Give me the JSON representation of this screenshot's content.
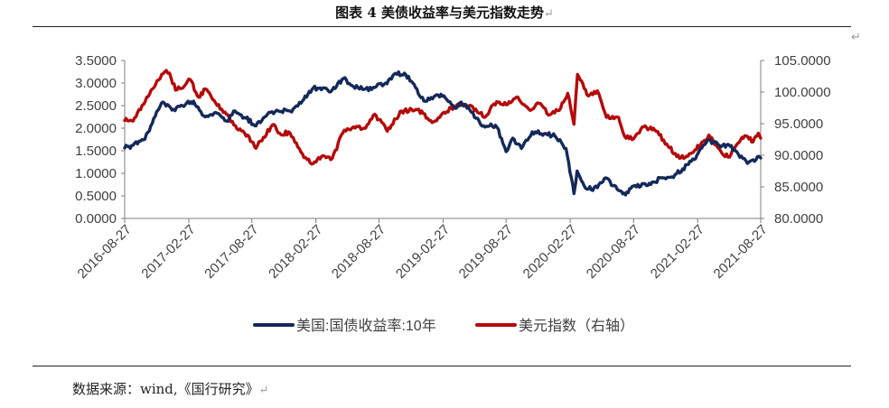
{
  "header": {
    "title": "图表 4  美债收益率与美元指数走势",
    "return_mark": "↵"
  },
  "footer": {
    "source": "数据来源：wind,《国行研究》",
    "return_mark": "↵"
  },
  "chart_data": {
    "type": "line",
    "x_ticks": [
      "2016-08-27",
      "2017-02-27",
      "2017-08-27",
      "2018-02-27",
      "2018-08-27",
      "2019-02-27",
      "2019-08-27",
      "2020-02-27",
      "2020-08-27",
      "2021-02-27",
      "2021-08-27"
    ],
    "y_left": {
      "ticks": [
        "3.5000",
        "3.0000",
        "2.5000",
        "2.0000",
        "1.5000",
        "1.0000",
        "0.5000",
        "0.0000"
      ],
      "range": [
        0,
        3.5
      ]
    },
    "y_right": {
      "ticks": [
        "105.0000",
        "100.0000",
        "95.0000",
        "90.0000",
        "85.0000",
        "80.0000"
      ],
      "range": [
        80,
        105
      ]
    },
    "grid": false,
    "legend_position": "bottom",
    "series": [
      {
        "name": "美国:国债收益率:10年",
        "axis": "left",
        "color": "#14285a",
        "points": [
          [
            "2016-08-27",
            1.56
          ],
          [
            "2016-09-20",
            1.62
          ],
          [
            "2016-10-20",
            1.74
          ],
          [
            "2016-11-10",
            2.05
          ],
          [
            "2016-12-01",
            2.4
          ],
          [
            "2016-12-15",
            2.58
          ],
          [
            "2017-01-10",
            2.4
          ],
          [
            "2017-02-01",
            2.48
          ],
          [
            "2017-03-13",
            2.6
          ],
          [
            "2017-04-15",
            2.25
          ],
          [
            "2017-05-15",
            2.35
          ],
          [
            "2017-06-15",
            2.16
          ],
          [
            "2017-07-10",
            2.38
          ],
          [
            "2017-08-10",
            2.22
          ],
          [
            "2017-09-08",
            2.05
          ],
          [
            "2017-10-15",
            2.35
          ],
          [
            "2017-11-15",
            2.37
          ],
          [
            "2017-12-15",
            2.38
          ],
          [
            "2018-01-15",
            2.55
          ],
          [
            "2018-02-20",
            2.9
          ],
          [
            "2018-03-15",
            2.85
          ],
          [
            "2018-04-15",
            2.85
          ],
          [
            "2018-05-17",
            3.1
          ],
          [
            "2018-06-15",
            2.92
          ],
          [
            "2018-07-15",
            2.86
          ],
          [
            "2018-08-15",
            2.9
          ],
          [
            "2018-09-15",
            3.0
          ],
          [
            "2018-10-10",
            3.2
          ],
          [
            "2018-11-08",
            3.22
          ],
          [
            "2018-12-10",
            2.9
          ],
          [
            "2019-01-03",
            2.6
          ],
          [
            "2019-02-01",
            2.7
          ],
          [
            "2019-03-01",
            2.72
          ],
          [
            "2019-04-01",
            2.45
          ],
          [
            "2019-04-20",
            2.58
          ],
          [
            "2019-05-15",
            2.4
          ],
          [
            "2019-06-15",
            2.08
          ],
          [
            "2019-07-10",
            2.05
          ],
          [
            "2019-08-01",
            2.02
          ],
          [
            "2019-08-27",
            1.48
          ],
          [
            "2019-09-15",
            1.78
          ],
          [
            "2019-10-10",
            1.55
          ],
          [
            "2019-11-10",
            1.92
          ],
          [
            "2019-12-15",
            1.88
          ],
          [
            "2020-01-15",
            1.82
          ],
          [
            "2020-02-15",
            1.55
          ],
          [
            "2020-03-09",
            0.55
          ],
          [
            "2020-03-18",
            1.05
          ],
          [
            "2020-04-15",
            0.65
          ],
          [
            "2020-05-15",
            0.68
          ],
          [
            "2020-06-08",
            0.9
          ],
          [
            "2020-07-15",
            0.62
          ],
          [
            "2020-08-04",
            0.52
          ],
          [
            "2020-08-27",
            0.72
          ],
          [
            "2020-10-15",
            0.75
          ],
          [
            "2020-11-15",
            0.9
          ],
          [
            "2020-12-15",
            0.92
          ],
          [
            "2021-01-15",
            1.1
          ],
          [
            "2021-02-25",
            1.4
          ],
          [
            "2021-03-15",
            1.62
          ],
          [
            "2021-03-31",
            1.74
          ],
          [
            "2021-04-30",
            1.62
          ],
          [
            "2021-05-31",
            1.6
          ],
          [
            "2021-06-15",
            1.5
          ],
          [
            "2021-07-20",
            1.22
          ],
          [
            "2021-08-05",
            1.3
          ],
          [
            "2021-08-27",
            1.34
          ]
        ]
      },
      {
        "name": "美元指数（右轴）",
        "axis": "right",
        "color": "#b40a0a",
        "points": [
          [
            "2016-08-27",
            95.5
          ],
          [
            "2016-09-20",
            95.4
          ],
          [
            "2016-10-25",
            98.5
          ],
          [
            "2016-11-15",
            100.5
          ],
          [
            "2016-12-20",
            103.2
          ],
          [
            "2017-01-03",
            103.0
          ],
          [
            "2017-01-20",
            100.3
          ],
          [
            "2017-02-15",
            101.0
          ],
          [
            "2017-03-03",
            102.0
          ],
          [
            "2017-03-27",
            99.2
          ],
          [
            "2017-04-15",
            100.5
          ],
          [
            "2017-05-15",
            98.3
          ],
          [
            "2017-06-15",
            96.5
          ],
          [
            "2017-07-15",
            94.2
          ],
          [
            "2017-08-15",
            93.2
          ],
          [
            "2017-09-08",
            91.1
          ],
          [
            "2017-10-25",
            94.8
          ],
          [
            "2017-11-15",
            93.5
          ],
          [
            "2017-12-15",
            93.5
          ],
          [
            "2018-01-15",
            90.5
          ],
          [
            "2018-02-15",
            88.6
          ],
          [
            "2018-03-15",
            89.8
          ],
          [
            "2018-04-15",
            89.5
          ],
          [
            "2018-05-15",
            93.5
          ],
          [
            "2018-06-15",
            94.5
          ],
          [
            "2018-07-15",
            94.3
          ],
          [
            "2018-08-15",
            96.5
          ],
          [
            "2018-09-20",
            93.8
          ],
          [
            "2018-10-31",
            97.0
          ],
          [
            "2018-12-15",
            97.2
          ],
          [
            "2019-01-31",
            95.3
          ],
          [
            "2019-03-01",
            96.8
          ],
          [
            "2019-04-25",
            98.1
          ],
          [
            "2019-06-01",
            97.3
          ],
          [
            "2019-06-25",
            96.0
          ],
          [
            "2019-07-31",
            98.5
          ],
          [
            "2019-08-27",
            98.0
          ],
          [
            "2019-09-30",
            99.2
          ],
          [
            "2019-10-31",
            97.3
          ],
          [
            "2019-11-30",
            98.2
          ],
          [
            "2019-12-31",
            96.4
          ],
          [
            "2020-01-31",
            97.5
          ],
          [
            "2020-02-20",
            99.8
          ],
          [
            "2020-03-09",
            94.9
          ],
          [
            "2020-03-19",
            102.8
          ],
          [
            "2020-04-15",
            99.6
          ],
          [
            "2020-05-15",
            100.2
          ],
          [
            "2020-06-10",
            96.0
          ],
          [
            "2020-07-15",
            96.0
          ],
          [
            "2020-08-01",
            93.0
          ],
          [
            "2020-08-27",
            92.6
          ],
          [
            "2020-09-25",
            94.5
          ],
          [
            "2020-10-31",
            93.8
          ],
          [
            "2020-11-30",
            91.8
          ],
          [
            "2021-01-06",
            89.5
          ],
          [
            "2021-02-15",
            90.5
          ],
          [
            "2021-03-31",
            93.2
          ],
          [
            "2021-04-30",
            91.0
          ],
          [
            "2021-05-25",
            89.7
          ],
          [
            "2021-06-30",
            92.4
          ],
          [
            "2021-07-20",
            93.0
          ],
          [
            "2021-08-05",
            92.1
          ],
          [
            "2021-08-20",
            93.5
          ],
          [
            "2021-08-27",
            92.7
          ]
        ]
      }
    ]
  }
}
